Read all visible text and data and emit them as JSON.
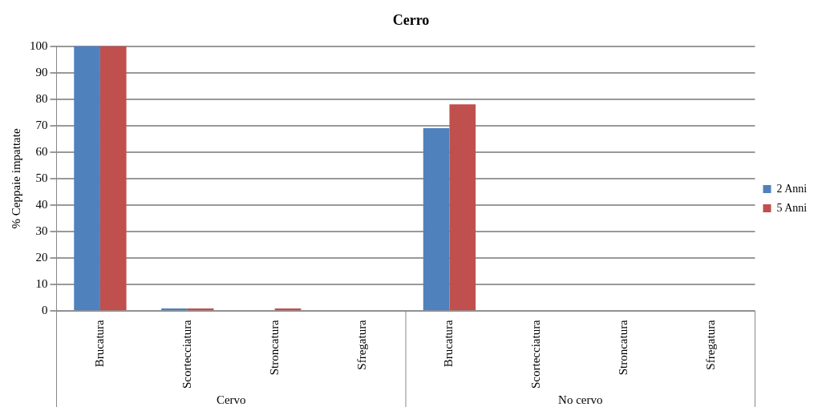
{
  "chart_data": {
    "type": "bar",
    "title": "Cerro",
    "ylabel": "% Ceppaie impattate",
    "categories": [
      "Brucatura",
      "Scortecciatura",
      "Stroncatura",
      "Sfregatura",
      "Brucatura",
      "Scortecciatura",
      "Stroncatura",
      "Sfregatura"
    ],
    "series": [
      {
        "name": "2 Anni",
        "color": "#4f81bd",
        "values": [
          100,
          1,
          0,
          0,
          69,
          0,
          0,
          0
        ]
      },
      {
        "name": "5 Anni",
        "color": "#c0504d",
        "values": [
          100,
          1,
          1,
          0,
          78,
          0,
          0,
          0
        ]
      }
    ],
    "ylim": [
      0,
      100
    ],
    "yticks": [
      0,
      10,
      20,
      30,
      40,
      50,
      60,
      70,
      80,
      90,
      100
    ],
    "grid": "y",
    "legend": "right",
    "annotations": [
      "Cervo",
      "No cervo"
    ]
  }
}
